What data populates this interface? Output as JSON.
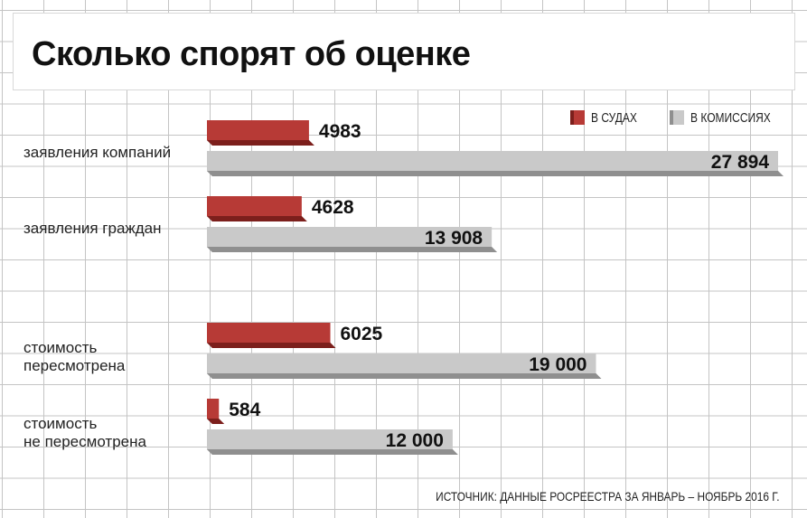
{
  "title": "Сколько спорят об оценке",
  "legend": {
    "courts": "В СУДАХ",
    "commissions": "В КОМИССИЯХ"
  },
  "source": "ИСТОЧНИК: ДАННЫЕ РОСРЕЕСТРА ЗА ЯНВАРЬ – НОЯБРЬ 2016 Г.",
  "colors": {
    "courts": "#b73a36",
    "courts_dark": "#7c1f1c",
    "commissions": "#c9c9c9",
    "commissions_dark": "#8f8f8f"
  },
  "chart_data": {
    "type": "bar",
    "orientation": "horizontal",
    "categories_line1": [
      "заявления компаний",
      "заявления граждан",
      "стоимость",
      "стоимость"
    ],
    "categories_line2": [
      "",
      "",
      "пересмотрена",
      "не пересмотрена"
    ],
    "series": [
      {
        "name": "В СУДАХ",
        "values": [
          4983,
          4628,
          6025,
          584
        ],
        "labels": [
          "4983",
          "4628",
          "6025",
          "584"
        ]
      },
      {
        "name": "В КОМИССИЯХ",
        "values": [
          27894,
          13908,
          19000,
          12000
        ],
        "labels": [
          "27 894",
          "13 908",
          "19 000",
          "12 000"
        ]
      }
    ],
    "xlim": [
      0,
      27894
    ],
    "grid": true,
    "legend_position": "top-right"
  }
}
